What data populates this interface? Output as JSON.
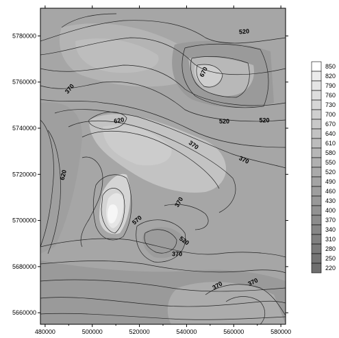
{
  "map": {
    "type": "contour",
    "x_ticks": [
      "480000",
      "500000",
      "520000",
      "540000",
      "560000",
      "580000"
    ],
    "y_ticks": [
      "5780000",
      "5760000",
      "5740000",
      "5720000",
      "5700000",
      "5680000",
      "5660000"
    ],
    "x_range": [
      478000,
      582000
    ],
    "y_range": [
      5655000,
      5792000
    ],
    "contour_labels": [
      {
        "text": "520",
        "x": 564500,
        "y": 5781000,
        "rotate": -5
      },
      {
        "text": "670",
        "x": 548000,
        "y": 5764000,
        "rotate": -65
      },
      {
        "text": "370",
        "x": 491000,
        "y": 5756500,
        "rotate": -50
      },
      {
        "text": "620",
        "x": 511500,
        "y": 5742500,
        "rotate": -10
      },
      {
        "text": "520",
        "x": 556000,
        "y": 5742000,
        "rotate": 0
      },
      {
        "text": "520",
        "x": 573000,
        "y": 5742500,
        "rotate": 0
      },
      {
        "text": "370",
        "x": 542500,
        "y": 5732000,
        "rotate": 35
      },
      {
        "text": "370",
        "x": 564000,
        "y": 5725500,
        "rotate": 25
      },
      {
        "text": "620",
        "x": 488500,
        "y": 5719500,
        "rotate": -75
      },
      {
        "text": "370",
        "x": 537500,
        "y": 5707500,
        "rotate": -60
      },
      {
        "text": "570",
        "x": 519500,
        "y": 5699500,
        "rotate": -40
      },
      {
        "text": "520",
        "x": 538500,
        "y": 5690500,
        "rotate": 35
      },
      {
        "text": "370",
        "x": 536000,
        "y": 5684500,
        "rotate": 0
      },
      {
        "text": "370",
        "x": 553500,
        "y": 5671000,
        "rotate": -30
      },
      {
        "text": "370",
        "x": 568500,
        "y": 5672500,
        "rotate": -25
      }
    ]
  },
  "legend": {
    "levels": [
      "850",
      "820",
      "790",
      "760",
      "730",
      "700",
      "670",
      "640",
      "610",
      "580",
      "550",
      "520",
      "490",
      "460",
      "430",
      "400",
      "370",
      "340",
      "310",
      "280",
      "250",
      "220"
    ],
    "colors": [
      "#ffffff",
      "#ebebeb",
      "#e4e4e4",
      "#dddddd",
      "#d6d6d6",
      "#cfcfcf",
      "#c8c8c8",
      "#c2c2c2",
      "#bcbcbc",
      "#b6b6b6",
      "#b0b0b0",
      "#aaaaaa",
      "#a4a4a4",
      "#9e9e9e",
      "#989898",
      "#929292",
      "#8c8c8c",
      "#868686",
      "#808080",
      "#7a7a7a",
      "#747474",
      "#6e6e6e"
    ]
  }
}
